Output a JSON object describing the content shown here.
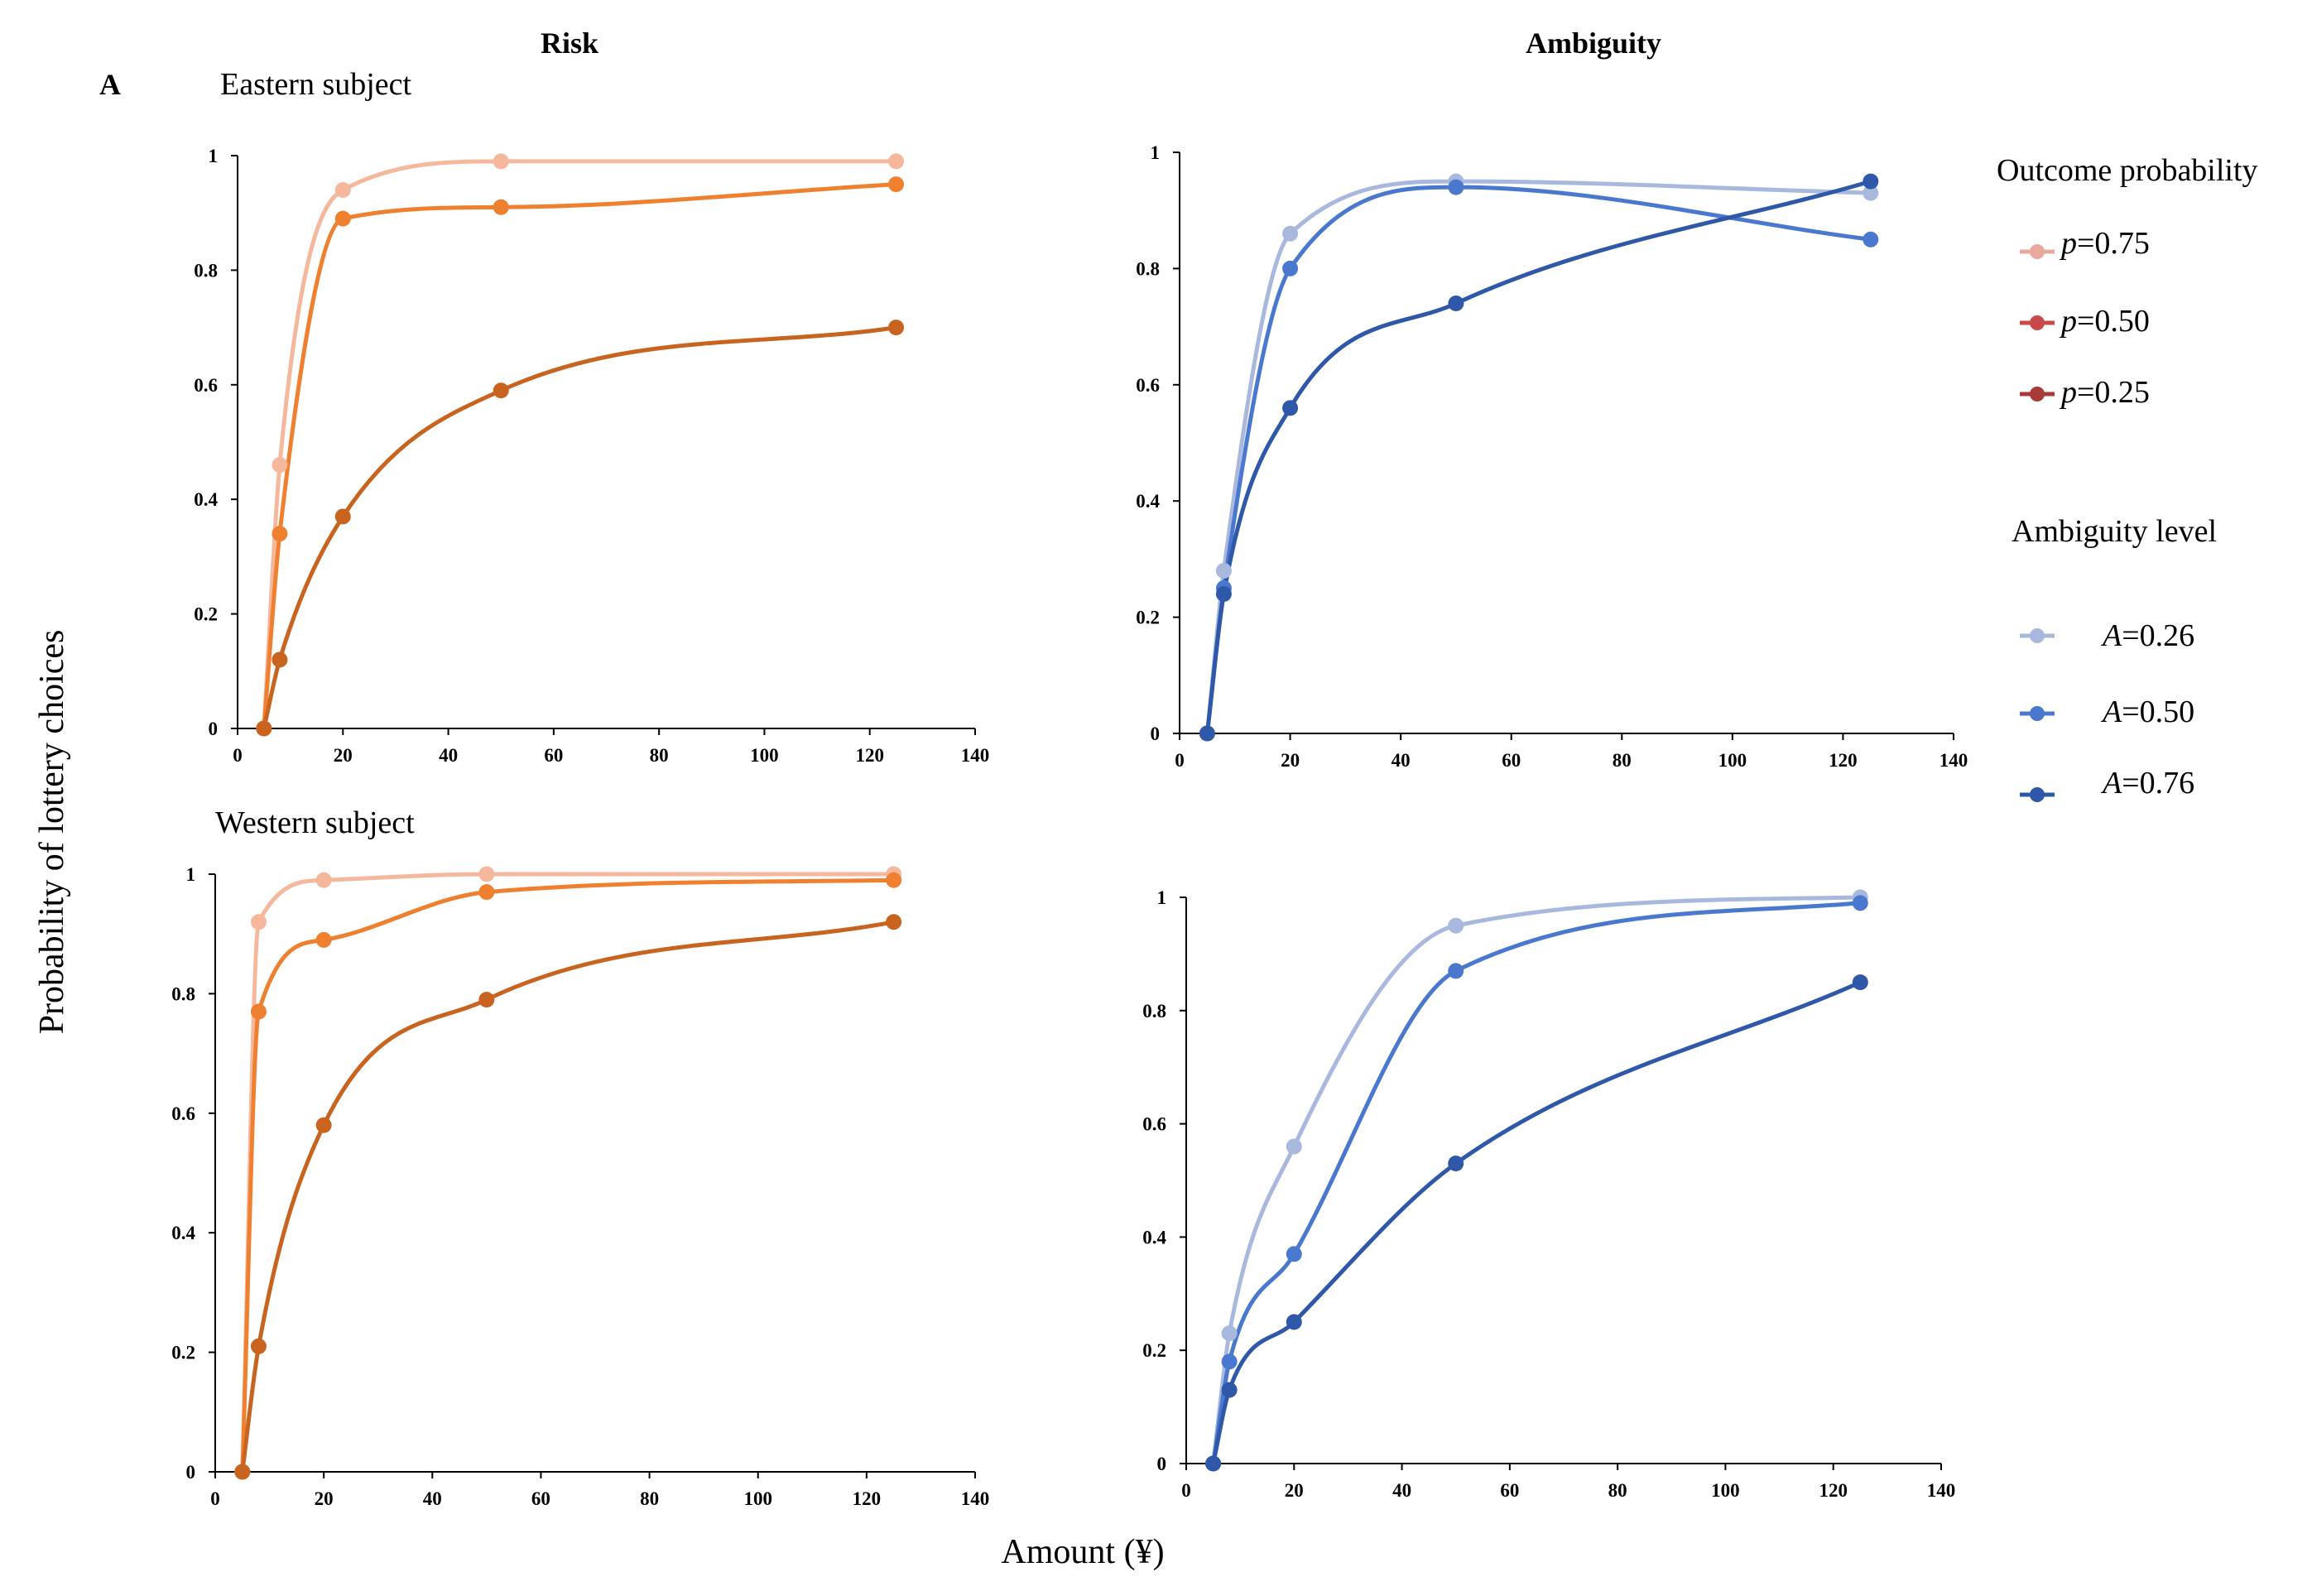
{
  "figure": {
    "panel_letter": "A",
    "col_titles": [
      "Risk",
      "Ambiguity"
    ],
    "row_titles": [
      "Eastern subject",
      "Western subject"
    ],
    "ylabel": "Probability of lottery choices",
    "xlabel": "Amount (¥)"
  },
  "legend": {
    "risk": {
      "title": "Outcome probability",
      "entries": [
        {
          "var": "p",
          "text": "=0.75",
          "color": "#E8A99C"
        },
        {
          "var": "p",
          "text": "=0.50",
          "color": "#C9484A"
        },
        {
          "var": "p",
          "text": "=0.25",
          "color": "#A83A3A"
        }
      ]
    },
    "ambiguity": {
      "title": "Ambiguity level",
      "entries": [
        {
          "var": "A",
          "text": "=0.26",
          "color": "#A9B9DE"
        },
        {
          "var": "A",
          "text": "=0.50",
          "color": "#4A78CF"
        },
        {
          "var": "A",
          "text": "=0.76",
          "color": "#3058A8"
        }
      ]
    }
  },
  "chart_data": [
    {
      "type": "line",
      "title": "Eastern subject",
      "group": "Risk",
      "xlabel": "Amount (¥)",
      "ylabel": "Probability of lottery choices",
      "xlim": [
        0,
        140
      ],
      "ylim": [
        0,
        1
      ],
      "xticks": [
        0,
        20,
        40,
        60,
        80,
        100,
        120,
        140
      ],
      "yticks": [
        0,
        0.2,
        0.4,
        0.6,
        0.8,
        1
      ],
      "x": [
        5,
        8,
        20,
        50,
        125
      ],
      "series": [
        {
          "name": "p=0.75",
          "color": "#F5B89C",
          "values": [
            0,
            0.46,
            0.94,
            0.99,
            0.99
          ]
        },
        {
          "name": "p=0.50",
          "color": "#EE8030",
          "values": [
            0,
            0.34,
            0.89,
            0.91,
            0.95
          ]
        },
        {
          "name": "p=0.25",
          "color": "#C86420",
          "values": [
            0,
            0.12,
            0.37,
            0.59,
            0.7
          ]
        }
      ]
    },
    {
      "type": "line",
      "title": "",
      "group": "Ambiguity",
      "xlabel": "Amount (¥)",
      "ylabel": "Probability of lottery choices",
      "xlim": [
        0,
        140
      ],
      "ylim": [
        0,
        1
      ],
      "xticks": [
        0,
        20,
        40,
        60,
        80,
        100,
        120,
        140
      ],
      "yticks": [
        0,
        0.2,
        0.4,
        0.6,
        0.8,
        1
      ],
      "x": [
        5,
        8,
        20,
        50,
        125
      ],
      "series": [
        {
          "name": "A=0.26",
          "color": "#A9B9DE",
          "values": [
            0,
            0.28,
            0.86,
            0.95,
            0.93
          ]
        },
        {
          "name": "A=0.50",
          "color": "#4A78CF",
          "values": [
            0,
            0.25,
            0.8,
            0.94,
            0.85
          ]
        },
        {
          "name": "A=0.76",
          "color": "#3058A8",
          "values": [
            0,
            0.24,
            0.56,
            0.74,
            0.95
          ]
        }
      ]
    },
    {
      "type": "line",
      "title": "Western subject",
      "group": "Risk",
      "xlabel": "Amount (¥)",
      "ylabel": "Probability of lottery choices",
      "xlim": [
        0,
        140
      ],
      "ylim": [
        0,
        1
      ],
      "xticks": [
        0,
        20,
        40,
        60,
        80,
        100,
        120,
        140
      ],
      "yticks": [
        0,
        0.2,
        0.4,
        0.6,
        0.8,
        1
      ],
      "x": [
        5,
        8,
        20,
        50,
        125
      ],
      "series": [
        {
          "name": "p=0.75",
          "color": "#F5B89C",
          "values": [
            0,
            0.92,
            0.99,
            1.0,
            1.0
          ]
        },
        {
          "name": "p=0.50",
          "color": "#EE8030",
          "values": [
            0,
            0.77,
            0.89,
            0.97,
            0.99
          ]
        },
        {
          "name": "p=0.25",
          "color": "#C86420",
          "values": [
            0,
            0.21,
            0.58,
            0.79,
            0.92
          ]
        }
      ]
    },
    {
      "type": "line",
      "title": "",
      "group": "Ambiguity",
      "xlabel": "Amount (¥)",
      "ylabel": "Probability of lottery choices",
      "xlim": [
        0,
        140
      ],
      "ylim": [
        0,
        1
      ],
      "xticks": [
        0,
        20,
        40,
        60,
        80,
        100,
        120,
        140
      ],
      "yticks": [
        0,
        0.2,
        0.4,
        0.6,
        0.8,
        1
      ],
      "x": [
        5,
        8,
        20,
        50,
        125
      ],
      "series": [
        {
          "name": "A=0.26",
          "color": "#A9B9DE",
          "values": [
            0,
            0.23,
            0.56,
            0.95,
            1.0
          ]
        },
        {
          "name": "A=0.50",
          "color": "#4A78CF",
          "values": [
            0,
            0.18,
            0.37,
            0.87,
            0.99
          ]
        },
        {
          "name": "A=0.76",
          "color": "#3058A8",
          "values": [
            0,
            0.13,
            0.25,
            0.53,
            0.85
          ]
        }
      ]
    }
  ]
}
